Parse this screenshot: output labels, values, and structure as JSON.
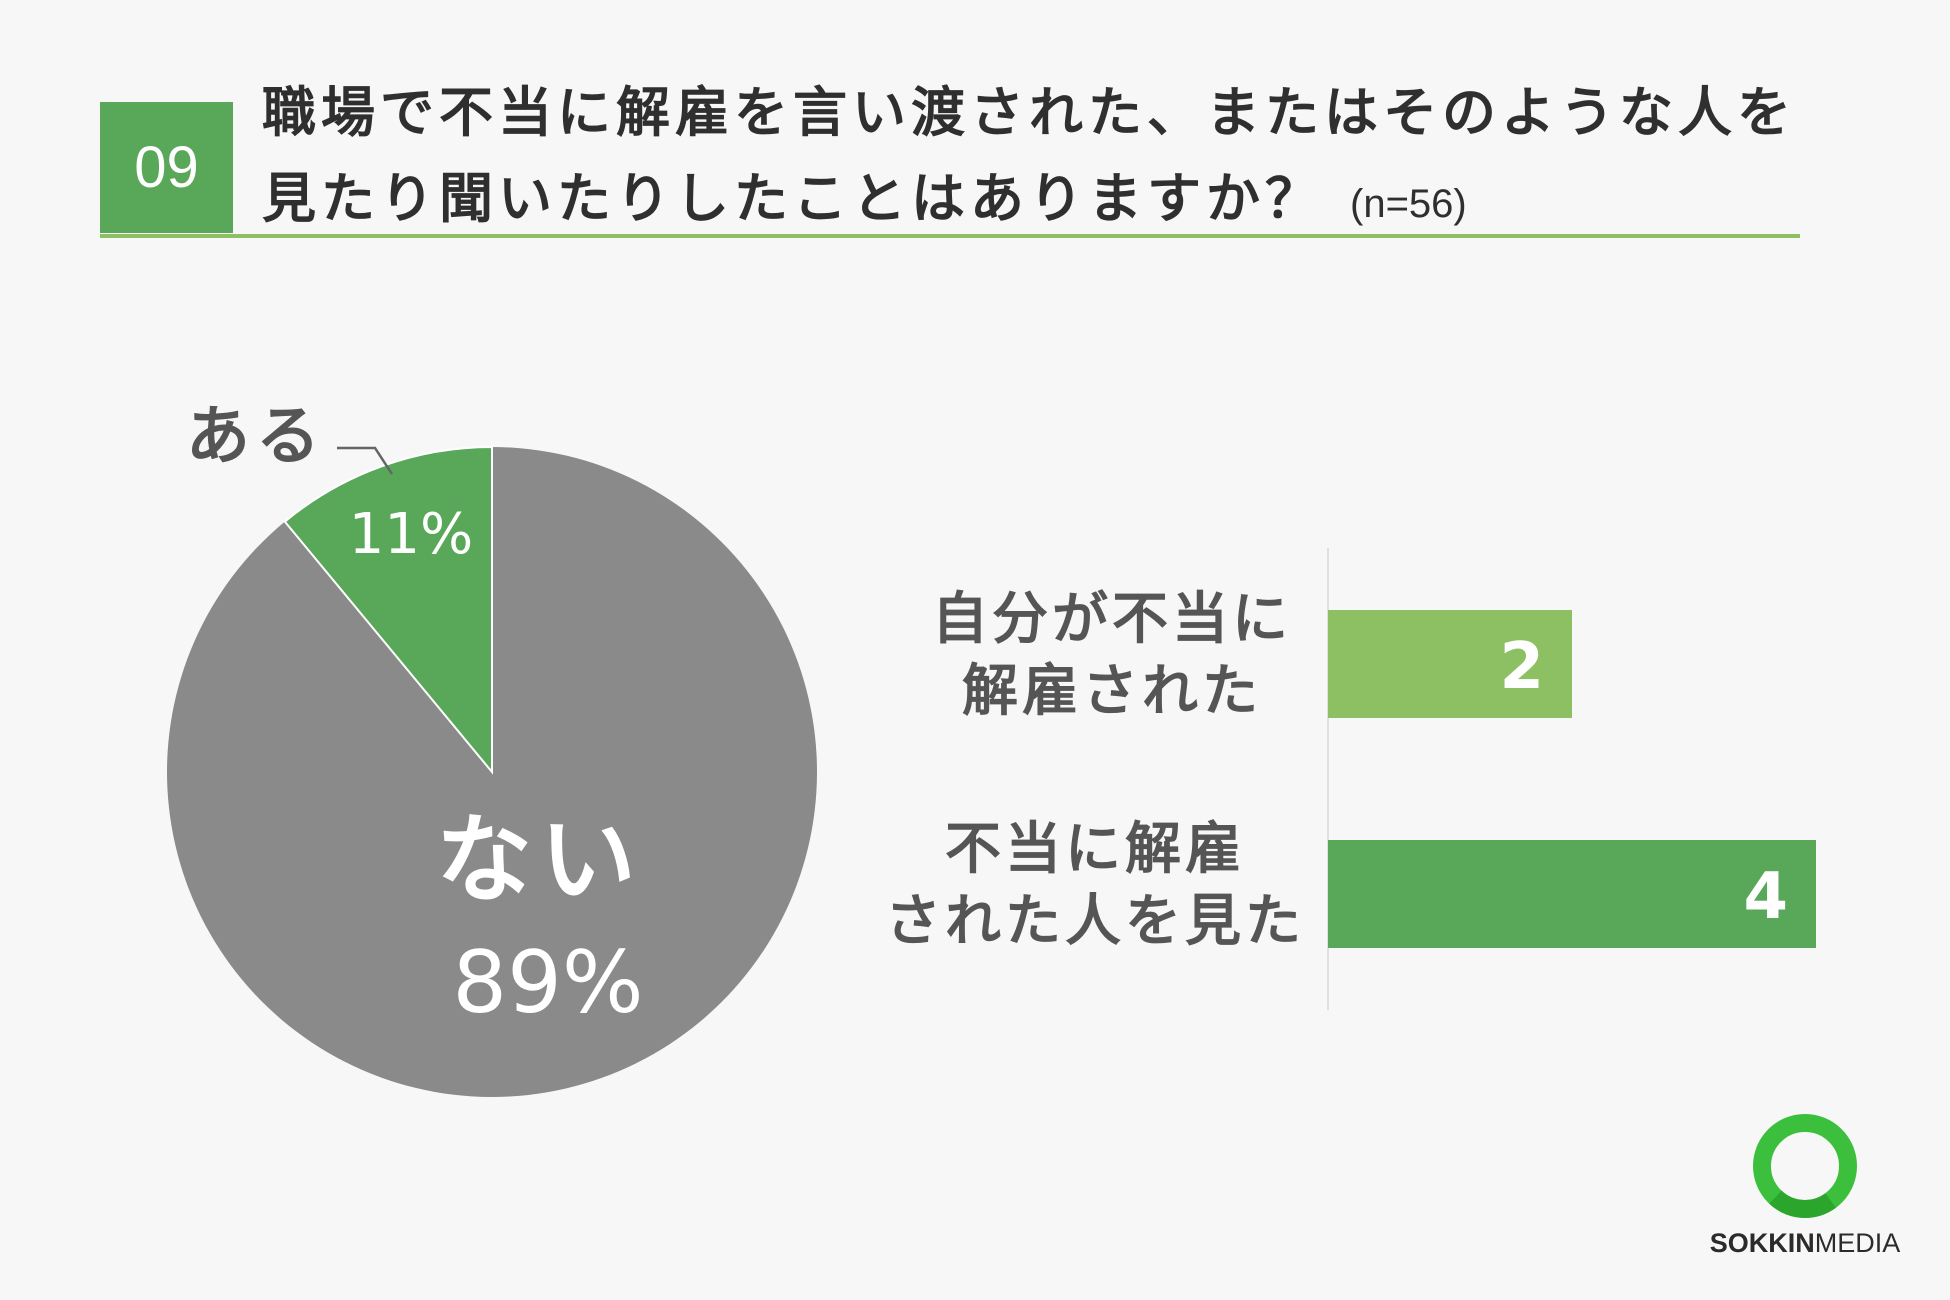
{
  "header": {
    "question_number": "09",
    "title_line1": "職場で不当に解雇を言い渡された、またはそのような人を",
    "title_line2": "見たり聞いたりしたことはありますか？",
    "sample": "(n=56)"
  },
  "colors": {
    "accent_green": "#59a859",
    "light_green": "#8dc063",
    "gray": "#8a8a8a",
    "text_dark": "#444444"
  },
  "chart_data": [
    {
      "type": "pie",
      "slices": [
        {
          "label": "ある",
          "percent_label": "11%",
          "value": 11,
          "color": "#59a859"
        },
        {
          "label": "ない",
          "percent_label": "89%",
          "value": 89,
          "color": "#8a8a8a"
        }
      ]
    },
    {
      "type": "bar",
      "orientation": "horizontal",
      "categories": [
        {
          "line1": "自分が不当に",
          "line2": "解雇された"
        },
        {
          "line1": "不当に解雇",
          "line2": "された人を見た"
        }
      ],
      "values": [
        2,
        4
      ],
      "value_labels": [
        "2",
        "4"
      ],
      "colors": [
        "#8dc063",
        "#59a859"
      ],
      "xlim": [
        0,
        4
      ]
    }
  ],
  "logo": {
    "text_bold": "SOKKIN",
    "text_regular": "MEDIA",
    "ring_color": "#3cbf3c"
  }
}
